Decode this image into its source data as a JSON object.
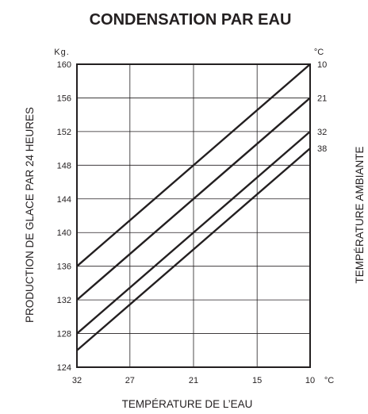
{
  "chart_data": {
    "type": "line",
    "title": "CONDENSATION PAR EAU",
    "xlabel": "TEMPÉRATURE DE L’EAU",
    "ylabel": "PRODUCTION DE GLACE PAR 24 HEURES",
    "y2label": "TEMPÉRATURE AMBIANTE",
    "y_unit": "Kg.",
    "x_unit": "°C",
    "y2_unit": "°C",
    "x_ticks": [
      "32",
      "27",
      "21",
      "15",
      "10"
    ],
    "xlim": [
      32,
      10
    ],
    "y_ticks": [
      "124",
      "128",
      "132",
      "136",
      "140",
      "144",
      "148",
      "152",
      "156",
      "160"
    ],
    "ylim": [
      124,
      160
    ],
    "grid": true,
    "series": [
      {
        "name": "10",
        "x": [
          32,
          10
        ],
        "y": [
          136,
          160
        ]
      },
      {
        "name": "21",
        "x": [
          32,
          10
        ],
        "y": [
          132,
          156
        ]
      },
      {
        "name": "32",
        "x": [
          32,
          10
        ],
        "y": [
          128,
          152
        ]
      },
      {
        "name": "38",
        "x": [
          32,
          10
        ],
        "y": [
          126,
          150
        ]
      }
    ]
  }
}
